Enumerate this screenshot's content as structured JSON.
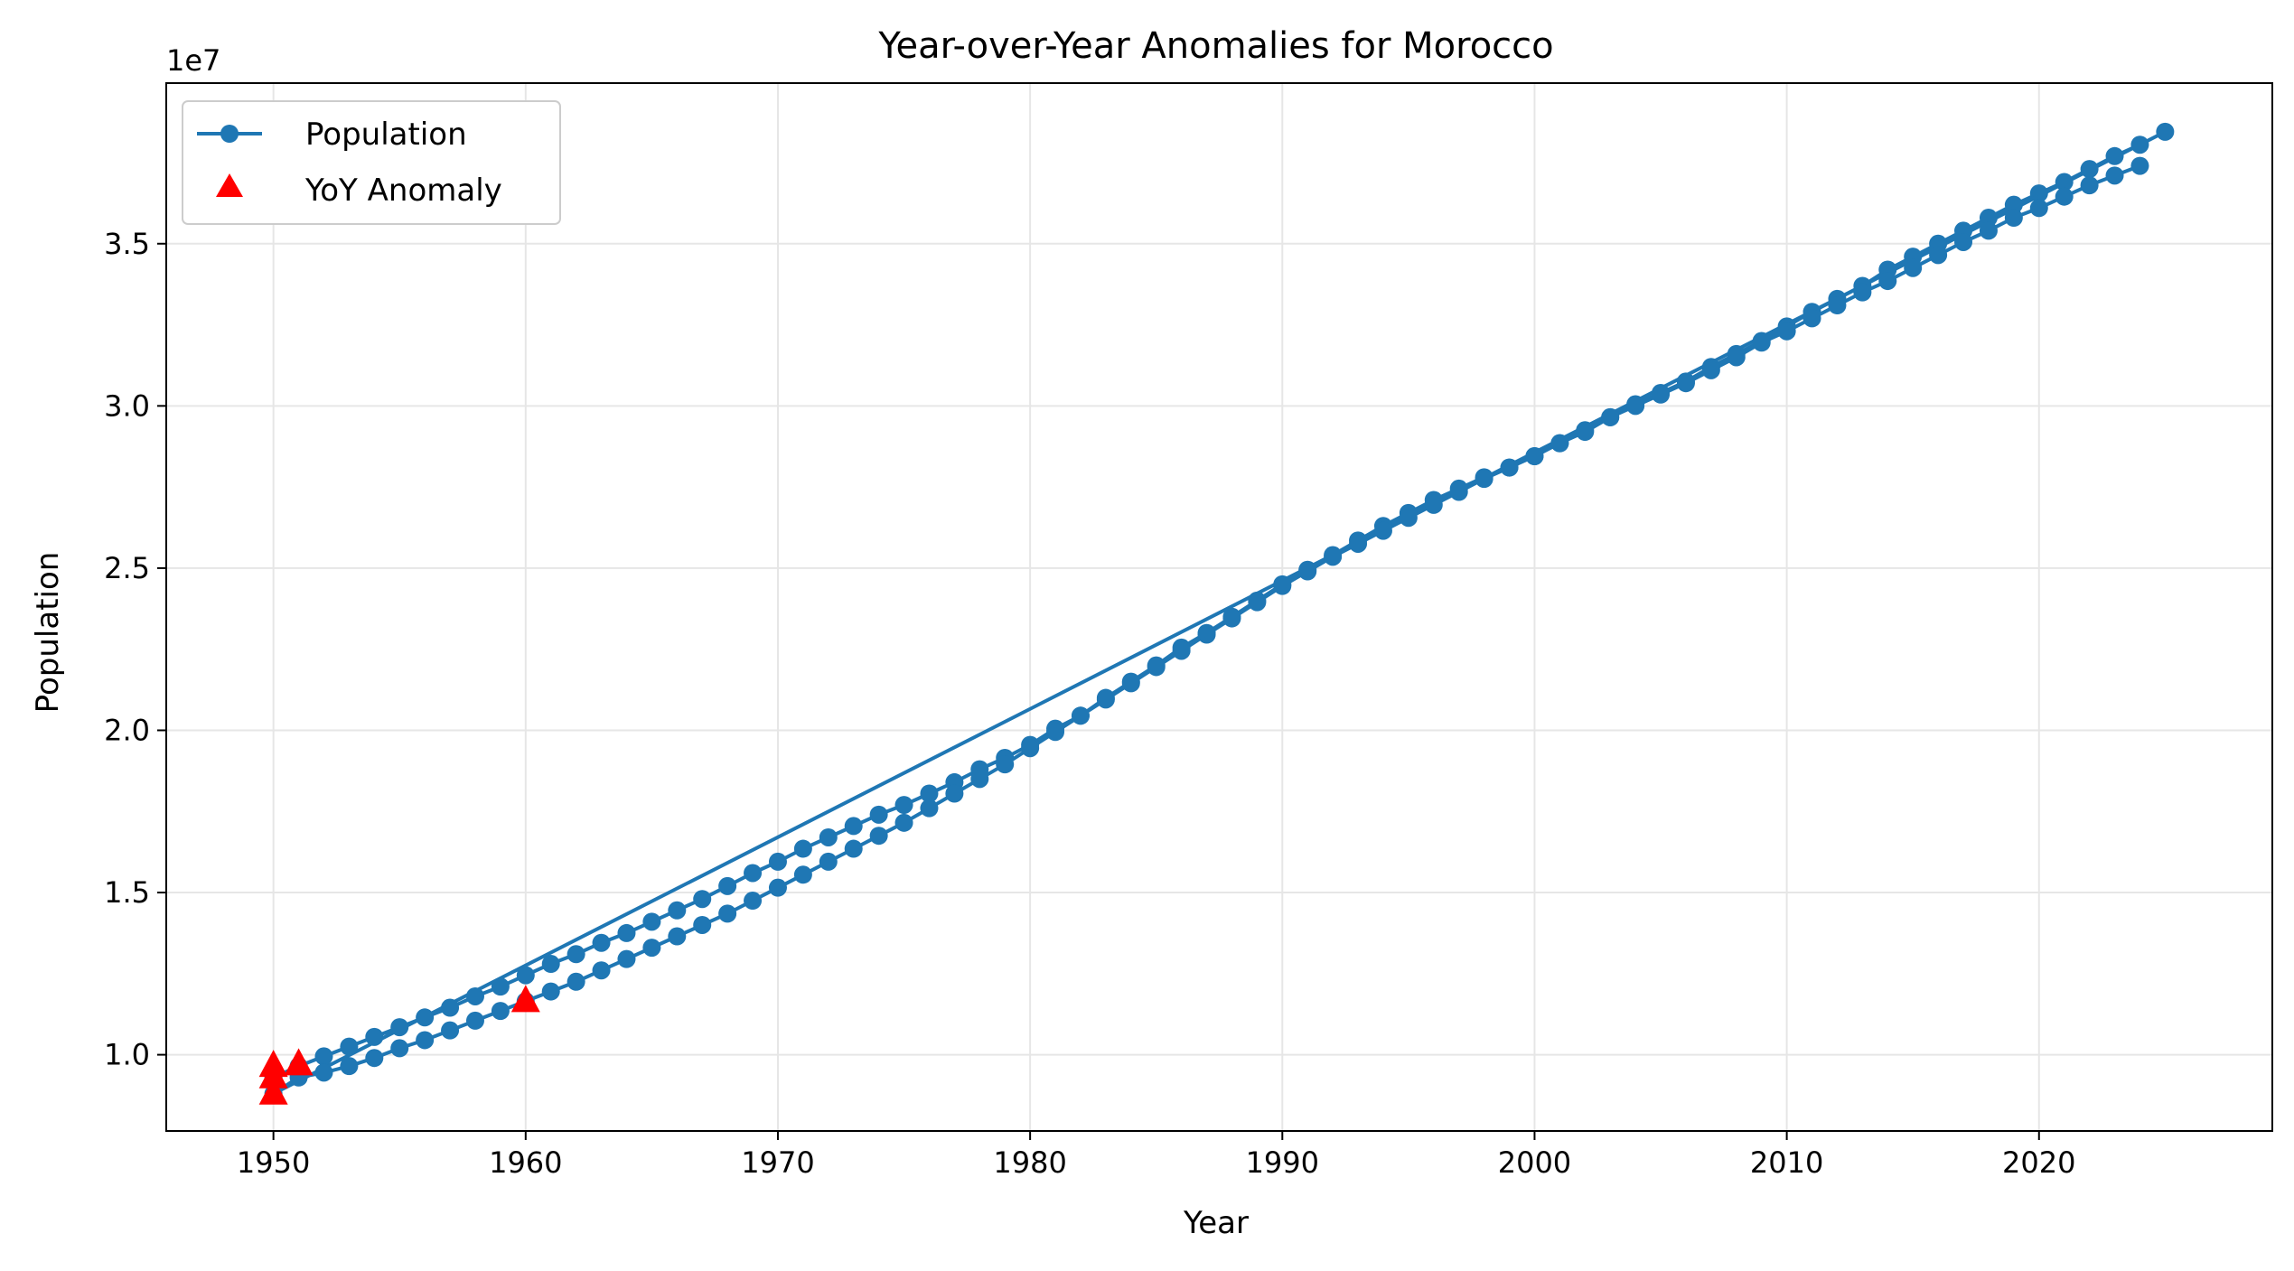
{
  "chart_data": {
    "type": "line",
    "title": "Year-over-Year Anomalies for Morocco",
    "xlabel": "Year",
    "ylabel": "Population",
    "y_offset_label": "1e7",
    "xlim": [
      1945.75,
      2029.25
    ],
    "ylim": [
      7650000,
      39950000
    ],
    "x_ticks": [
      1950,
      1960,
      1970,
      1980,
      1990,
      2000,
      2010,
      2020
    ],
    "y_ticks": [
      10000000,
      15000000,
      20000000,
      25000000,
      30000000,
      35000000
    ],
    "x_tick_labels": [
      "1950",
      "1960",
      "1970",
      "1980",
      "1990",
      "2000",
      "2010",
      "2020"
    ],
    "y_tick_labels": [
      "1.0",
      "1.5",
      "2.0",
      "2.5",
      "3.0",
      "3.5"
    ],
    "grid": true,
    "legend_position": "top-left",
    "colors": {
      "line": "#1f77b4",
      "anomaly": "#ff0000"
    },
    "series": [
      {
        "name": "Population",
        "marker": "circle",
        "x": [
          1950,
          1951,
          1952,
          1953,
          1954,
          1955,
          1956,
          1957,
          1958,
          1959,
          1960,
          1961,
          1962,
          1963,
          1964,
          1965,
          1966,
          1967,
          1968,
          1969,
          1970,
          1971,
          1972,
          1973,
          1974,
          1975,
          1976,
          1977,
          1978,
          1979,
          1980,
          1981,
          1982,
          1983,
          1984,
          1985,
          1986,
          1987,
          1988,
          1989,
          1990,
          1991,
          1992,
          1993,
          1994,
          1995,
          1996,
          1997,
          1998,
          1999,
          2000,
          2001,
          2002,
          2003,
          2004,
          2005,
          2006,
          2007,
          2008,
          2009,
          2010,
          2011,
          2012,
          2013,
          2014,
          2015,
          2016,
          2017,
          2018,
          2019,
          2020,
          2021,
          2022,
          2023,
          2024,
          2025,
          1950,
          1951,
          1952,
          1953,
          1954,
          1955,
          1956,
          1957,
          1958,
          1959,
          1960,
          1961,
          1962,
          1963,
          1964,
          1965,
          1966,
          1967,
          1968,
          1969,
          1970,
          1971,
          1972,
          1973,
          1974,
          1975,
          1976,
          1977,
          1978,
          1979,
          1980,
          1981,
          1982,
          1983,
          1984,
          1985,
          1986,
          1987,
          1988,
          1989,
          1990,
          1991,
          1992,
          1993,
          1994,
          1995,
          1996,
          1997,
          1998,
          1999,
          2000,
          2001,
          2002,
          2003,
          2004,
          2005,
          2006,
          2007,
          2008,
          2009,
          2010,
          2011,
          2012,
          2013,
          2014,
          2015,
          2016,
          2017,
          2018,
          2019,
          2020,
          2021,
          2022,
          2023,
          2024
        ],
        "values": [
          9300000,
          9650000,
          9950000,
          10250000,
          10550000,
          10850000,
          11150000,
          11450000,
          11800000,
          12100000,
          12450000,
          12800000,
          13100000,
          13450000,
          13750000,
          14100000,
          14450000,
          14800000,
          15200000,
          15600000,
          15950000,
          16350000,
          16700000,
          17050000,
          17400000,
          17700000,
          18050000,
          18400000,
          18800000,
          19150000,
          19550000,
          20050000,
          20450000,
          21000000,
          21500000,
          22000000,
          22550000,
          23000000,
          23500000,
          24000000,
          24500000,
          24950000,
          25400000,
          25850000,
          26300000,
          26700000,
          27100000,
          27450000,
          27800000,
          28100000,
          28450000,
          28850000,
          29200000,
          29650000,
          30050000,
          30400000,
          30750000,
          31200000,
          31600000,
          32000000,
          32450000,
          32900000,
          33300000,
          33700000,
          34200000,
          34600000,
          35000000,
          35400000,
          35800000,
          36200000,
          36550000,
          36900000,
          37300000,
          37700000,
          38050000,
          38450000,
          8800000,
          9300000,
          9450000,
          9650000,
          9900000,
          10200000,
          10450000,
          10750000,
          11050000,
          11350000,
          11650000,
          11950000,
          12250000,
          12600000,
          12950000,
          13300000,
          13650000,
          14000000,
          14350000,
          14750000,
          15150000,
          15550000,
          15950000,
          16350000,
          16750000,
          17150000,
          17600000,
          18050000,
          18500000,
          18950000,
          19450000,
          19950000,
          20450000,
          20950000,
          21450000,
          21950000,
          22450000,
          22950000,
          23450000,
          23950000,
          24450000,
          24900000,
          25350000,
          25750000,
          26150000,
          26550000,
          26950000,
          27350000,
          27750000,
          28100000,
          28450000,
          28850000,
          29250000,
          29650000,
          30000000,
          30350000,
          30700000,
          31100000,
          31500000,
          31950000,
          32300000,
          32700000,
          33100000,
          33500000,
          33850000,
          34250000,
          34650000,
          35050000,
          35400000,
          35800000,
          36100000,
          36450000,
          36800000,
          37100000,
          37400000
        ]
      },
      {
        "name": "YoY Anomaly",
        "marker": "triangle",
        "x": [
          1950,
          1950,
          1950,
          1951,
          1960
        ],
        "values": [
          8800000,
          9300000,
          9650000,
          9700000,
          11650000
        ]
      }
    ]
  }
}
